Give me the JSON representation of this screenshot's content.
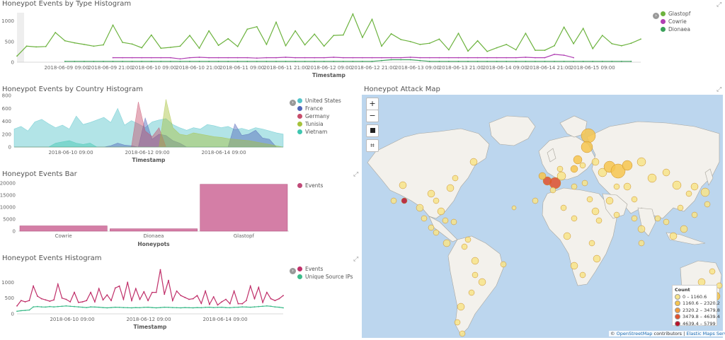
{
  "panels": {
    "type_hist": {
      "title": "Honeypot Events by Type Histogram",
      "xlabel": "Timestamp",
      "legend": [
        {
          "label": "Glastopf",
          "color": "#6db33f"
        },
        {
          "label": "Cowrie",
          "color": "#b03fb3"
        },
        {
          "label": "Dionaea",
          "color": "#3aa05a"
        }
      ]
    },
    "country_hist": {
      "title": "Honeypot Events by Country Histogram",
      "xlabel": "Timestamp",
      "legend": [
        {
          "label": "United States",
          "color": "#54c3c9"
        },
        {
          "label": "France",
          "color": "#4f64b8"
        },
        {
          "label": "Germany",
          "color": "#c74d6b"
        },
        {
          "label": "Tunisia",
          "color": "#a6c23b"
        },
        {
          "label": "Vietnam",
          "color": "#3fc6b0"
        }
      ]
    },
    "events_bar": {
      "title": "Honeypot Events Bar",
      "xlabel": "Honeypots",
      "legend": [
        {
          "label": "Events",
          "color": "#c04a78"
        }
      ]
    },
    "events_hist": {
      "title": "Honeypot Events Histogram",
      "xlabel": "Timestamp",
      "legend": [
        {
          "label": "Events",
          "color": "#c0306a"
        },
        {
          "label": "Unique Source IPs",
          "color": "#3dbb8a"
        }
      ]
    },
    "attack_map": {
      "title": "Honeypot Attack Map",
      "zoom_in": "+",
      "zoom_out": "−",
      "legend_title": "Count",
      "legend": [
        {
          "label": "0 – 1160.6",
          "color": "#f7e48a"
        },
        {
          "label": "1160.6 – 2320.2",
          "color": "#f6c54f"
        },
        {
          "label": "2320.2 – 3479.8",
          "color": "#f39a3a"
        },
        {
          "label": "3479.8 – 4639.4",
          "color": "#e2512d"
        },
        {
          "label": "4639.4 – 5799",
          "color": "#b8132a"
        }
      ],
      "attribution_prefix": "©",
      "attribution_osm": "OpenStreetMap",
      "attribution_mid": "contributors |",
      "attribution_ems": "Elastic Maps Service"
    }
  },
  "chart_data": [
    {
      "type": "line",
      "title": "Honeypot Events by Type Histogram",
      "xlabel": "Timestamp",
      "ylabel": "",
      "ylim": [
        0,
        1200
      ],
      "yticks": [
        0,
        500,
        1000
      ],
      "xticks": [
        "2018-06-09 09:00",
        "2018-06-09 21:00",
        "2018-06-10 09:00",
        "2018-06-10 21:00",
        "2018-06-11 09:00",
        "2018-06-11 21:00",
        "2018-06-12 09:00",
        "2018-06-12 21:00",
        "2018-06-13 09:00",
        "2018-06-13 21:00",
        "2018-06-14 09:00",
        "2018-06-14 21:00",
        "2018-06-15 09:00"
      ],
      "x_range_hours": [
        0,
        156
      ],
      "series": [
        {
          "name": "Glastopf",
          "color": "#6db33f",
          "values": [
            150,
            390,
            370,
            380,
            720,
            520,
            470,
            430,
            390,
            420,
            900,
            480,
            440,
            350,
            660,
            340,
            360,
            390,
            650,
            340,
            760,
            410,
            570,
            380,
            800,
            860,
            430,
            970,
            400,
            760,
            420,
            680,
            390,
            650,
            660,
            1170,
            600,
            1040,
            390,
            690,
            550,
            500,
            430,
            460,
            560,
            300,
            700,
            270,
            520,
            260,
            350,
            430,
            300,
            700,
            290,
            290,
            400,
            850,
            450,
            820,
            330,
            650,
            450,
            400,
            460,
            560
          ]
        },
        {
          "name": "Cowrie",
          "color": "#b03fb3",
          "start_index": 10,
          "values": [
            110,
            110,
            110,
            110,
            110,
            110,
            110,
            80,
            110,
            120,
            110,
            110,
            110,
            110,
            110,
            100,
            110,
            110,
            120,
            110,
            110,
            110,
            110,
            120,
            110,
            110,
            110,
            110,
            110,
            110,
            110,
            120,
            110,
            110,
            110,
            110,
            110,
            110,
            110,
            110,
            110,
            110,
            110,
            120,
            110,
            110,
            190,
            170,
            110
          ]
        },
        {
          "name": "Dionaea",
          "color": "#3aa05a",
          "start_index": 5,
          "values": [
            20,
            20,
            20,
            20,
            20,
            20,
            20,
            20,
            20,
            20,
            20,
            20,
            20,
            20,
            20,
            20,
            20,
            20,
            20,
            20,
            20,
            20,
            20,
            20,
            20,
            20,
            20,
            20,
            20,
            20,
            20,
            20,
            20,
            40,
            60,
            60,
            60,
            40,
            20,
            20,
            20,
            20,
            20,
            20,
            20,
            20,
            20,
            20,
            20,
            20,
            20,
            20,
            20,
            20,
            20,
            20,
            20,
            20,
            20,
            20
          ]
        }
      ]
    },
    {
      "type": "area",
      "title": "Honeypot Events by Country Histogram",
      "xlabel": "Timestamp",
      "ylim": [
        0,
        800
      ],
      "yticks": [
        0,
        200,
        400,
        600,
        800
      ],
      "xticks": [
        "2018-06-10 09:00",
        "2018-06-12 09:00",
        "2018-06-14 09:00"
      ],
      "series": [
        {
          "name": "United States",
          "color": "#54c3c9",
          "values": [
            280,
            320,
            250,
            390,
            430,
            360,
            300,
            340,
            280,
            480,
            350,
            380,
            420,
            460,
            380,
            600,
            340,
            410,
            360,
            300,
            390,
            420,
            440,
            350,
            300,
            260,
            300,
            280,
            350,
            330,
            300,
            320,
            270,
            290,
            260,
            300,
            280,
            250,
            220,
            200
          ]
        },
        {
          "name": "France",
          "color": "#4f64b8",
          "values": [
            0,
            0,
            0,
            0,
            0,
            0,
            0,
            0,
            0,
            0,
            0,
            0,
            0,
            0,
            20,
            60,
            30,
            20,
            0,
            450,
            120,
            200,
            180,
            100,
            60,
            0,
            0,
            0,
            0,
            0,
            0,
            0,
            360,
            180,
            200,
            260,
            140,
            120,
            0,
            0
          ]
        },
        {
          "name": "Germany",
          "color": "#c74d6b",
          "values": [
            0,
            0,
            0,
            0,
            0,
            0,
            0,
            0,
            0,
            0,
            0,
            0,
            0,
            0,
            0,
            0,
            0,
            0,
            700,
            250,
            160,
            300,
            0,
            0,
            0,
            0,
            0,
            0,
            0,
            0,
            0,
            0,
            0,
            0,
            0,
            0,
            0,
            0,
            0,
            0
          ]
        },
        {
          "name": "Tunisia",
          "color": "#a6c23b",
          "values": [
            0,
            0,
            0,
            0,
            0,
            0,
            0,
            0,
            0,
            0,
            0,
            0,
            0,
            0,
            0,
            0,
            0,
            0,
            0,
            0,
            0,
            0,
            740,
            300,
            200,
            180,
            220,
            200,
            180,
            160,
            150,
            130,
            120,
            110,
            100,
            80,
            60,
            40,
            20,
            0
          ]
        },
        {
          "name": "Vietnam",
          "color": "#3fc6b0",
          "values": [
            0,
            0,
            0,
            0,
            0,
            0,
            60,
            80,
            100,
            60,
            40,
            60,
            0,
            0,
            0,
            0,
            0,
            0,
            0,
            0,
            0,
            0,
            0,
            0,
            0,
            0,
            0,
            0,
            0,
            0,
            0,
            0,
            0,
            0,
            0,
            0,
            0,
            0,
            0,
            0
          ]
        }
      ]
    },
    {
      "type": "bar",
      "title": "Honeypot Events Bar",
      "xlabel": "Honeypots",
      "ylim": [
        0,
        20000
      ],
      "yticks": [
        0,
        5000,
        10000,
        15000,
        20000
      ],
      "categories": [
        "Cowrie",
        "Dionaea",
        "Glastopf"
      ],
      "series": [
        {
          "name": "Events",
          "color": "#d47ea6",
          "values": [
            2200,
            1000,
            19500
          ]
        }
      ]
    },
    {
      "type": "line",
      "title": "Honeypot Events Histogram",
      "xlabel": "Timestamp",
      "ylim": [
        0,
        1500
      ],
      "yticks": [
        0,
        500,
        1000
      ],
      "xticks": [
        "2018-06-10 09:00",
        "2018-06-12 09:00",
        "2018-06-14 09:00"
      ],
      "series": [
        {
          "name": "Events",
          "color": "#c0306a",
          "values": [
            250,
            420,
            380,
            420,
            880,
            560,
            480,
            440,
            400,
            440,
            940,
            500,
            460,
            380,
            680,
            360,
            380,
            420,
            680,
            380,
            800,
            440,
            600,
            420,
            820,
            880,
            460,
            1000,
            420,
            800,
            460,
            700,
            420,
            680,
            680,
            1400,
            620,
            1060,
            420,
            720,
            580,
            520,
            460,
            480,
            580,
            330,
            720,
            300,
            540,
            280,
            380,
            460,
            320,
            720,
            320,
            320,
            420,
            880,
            480,
            840,
            360,
            680,
            480,
            420,
            480,
            580
          ]
        },
        {
          "name": "Unique Source IPs",
          "color": "#3dbb8a",
          "values": [
            80,
            100,
            110,
            120,
            220,
            230,
            220,
            215,
            230,
            220,
            230,
            240,
            250,
            240,
            230,
            220,
            210,
            200,
            220,
            215,
            210,
            200,
            190,
            200,
            210,
            205,
            200,
            195,
            190,
            200,
            195,
            205,
            210,
            200,
            190,
            200,
            210,
            205,
            200,
            195,
            190,
            200,
            195,
            190,
            200,
            195,
            205,
            210,
            200,
            205,
            210,
            200,
            195,
            205,
            210,
            220,
            215,
            210,
            220,
            230,
            240,
            250,
            240,
            220,
            210,
            190
          ]
        }
      ]
    }
  ]
}
